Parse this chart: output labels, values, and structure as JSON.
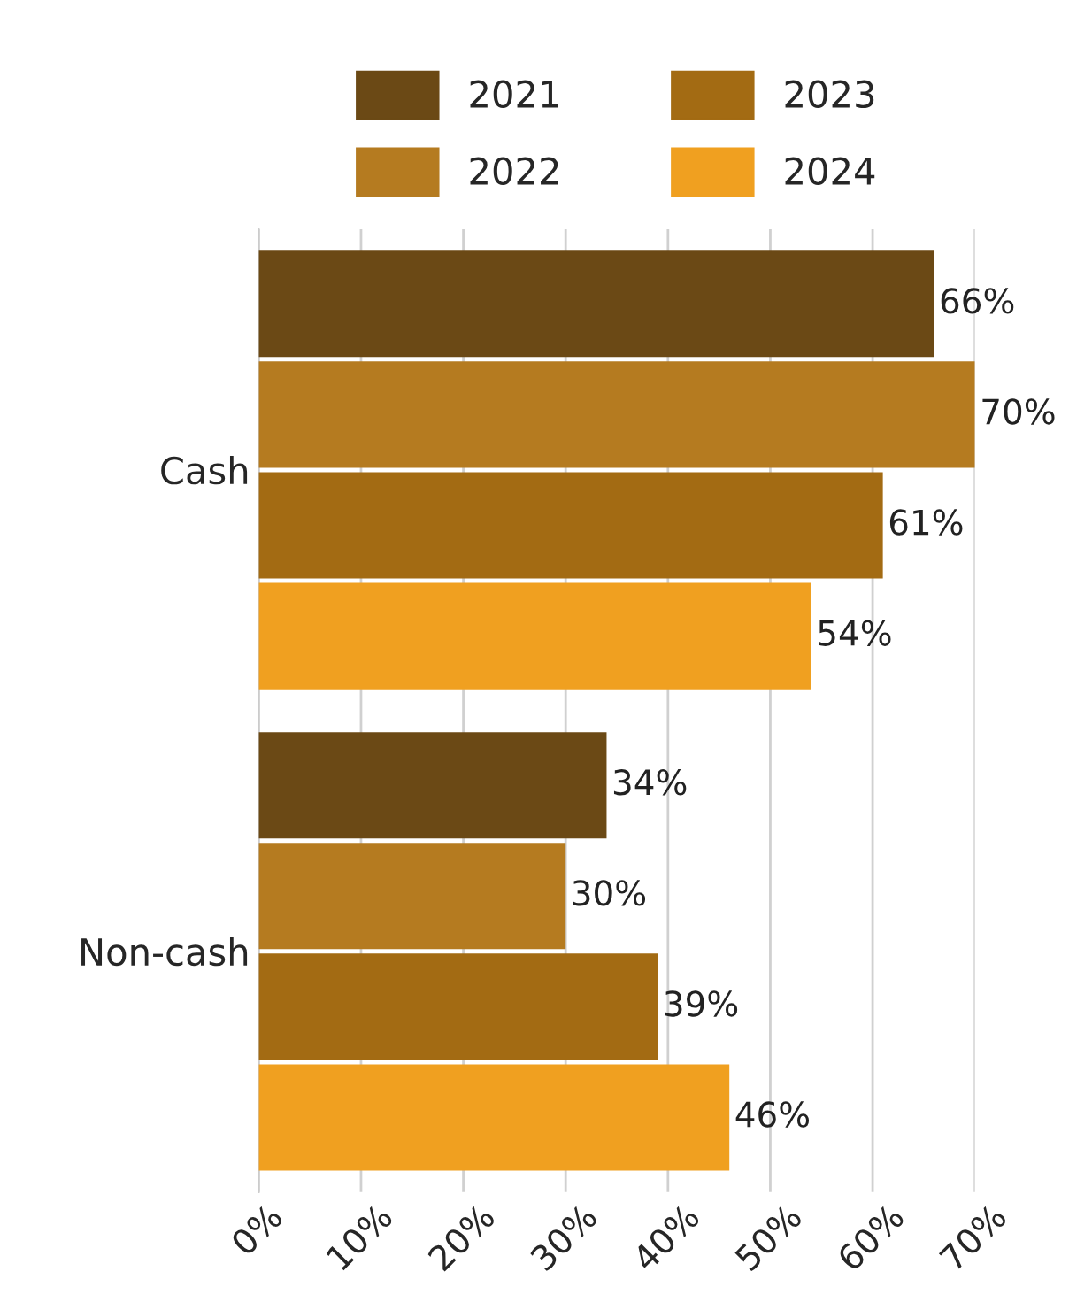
{
  "chart_data": {
    "type": "bar",
    "orientation": "horizontal",
    "categories": [
      "Cash",
      "Non-cash"
    ],
    "series": [
      {
        "name": "2021",
        "color": "#6b4915",
        "values": [
          66,
          34
        ],
        "value_labels": [
          "66%",
          "34%"
        ]
      },
      {
        "name": "2022",
        "color": "#b57b20",
        "values": [
          70,
          30
        ],
        "value_labels": [
          "70%",
          "30%"
        ]
      },
      {
        "name": "2023",
        "color": "#a36b13",
        "values": [
          61,
          39
        ],
        "value_labels": [
          "61%",
          "39%"
        ]
      },
      {
        "name": "2024",
        "color": "#f0a020",
        "values": [
          54,
          46
        ],
        "value_labels": [
          "54%",
          "46%"
        ]
      }
    ],
    "xlim": [
      0,
      70
    ],
    "xticks": [
      {
        "value": 0,
        "label": "0%"
      },
      {
        "value": 10,
        "label": "10%"
      },
      {
        "value": 20,
        "label": "20%"
      },
      {
        "value": 30,
        "label": "30%"
      },
      {
        "value": 40,
        "label": "40%"
      },
      {
        "value": 50,
        "label": "50%"
      },
      {
        "value": 60,
        "label": "60%"
      },
      {
        "value": 70,
        "label": "70%"
      }
    ],
    "grid": "x",
    "legend": "top"
  }
}
